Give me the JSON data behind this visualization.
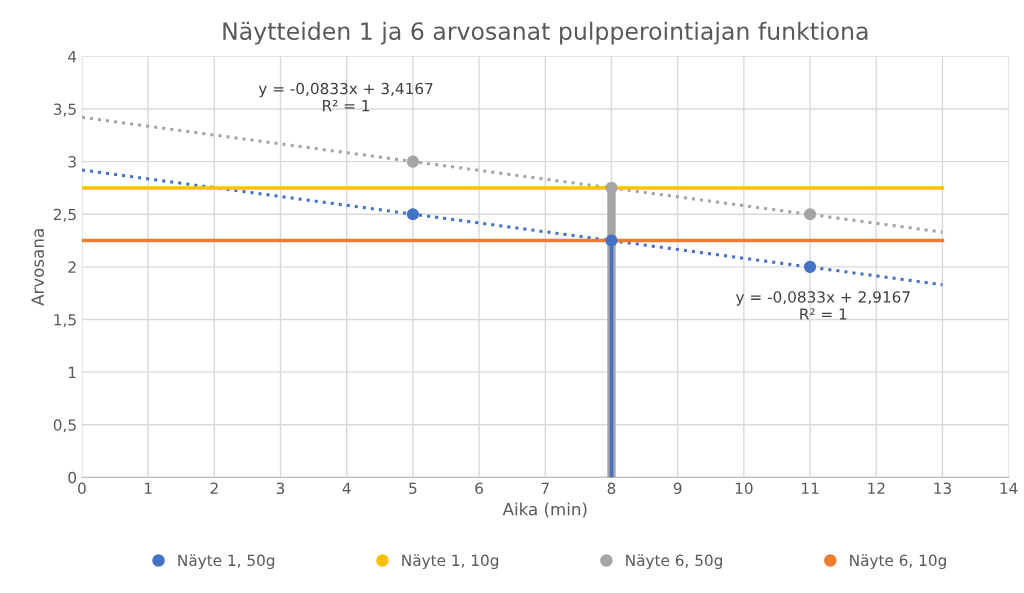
{
  "chart_data": {
    "type": "scatter",
    "title": "Näytteiden 1 ja 6 arvosanat pulpperointiajan funktiona",
    "xlabel": "Aika (min)",
    "ylabel": "Arvosana",
    "xlim": [
      0,
      14
    ],
    "xticks": [
      0,
      1,
      2,
      3,
      4,
      5,
      6,
      7,
      8,
      9,
      10,
      11,
      12,
      13,
      14
    ],
    "ylim": [
      0,
      4
    ],
    "yticks": [
      0,
      {
        "value": 0.5,
        "label": "0,5"
      },
      1,
      {
        "value": 1.5,
        "label": "1,5"
      },
      2,
      {
        "value": 2.5,
        "label": "2,5"
      },
      3,
      {
        "value": 3.5,
        "label": "3,5"
      },
      4
    ],
    "grid": true,
    "legend": "bottom",
    "series": [
      {
        "type": "line",
        "x": [
          0,
          13
        ],
        "values": [
          2.92,
          1.83
        ],
        "color": "#4472c4",
        "line_style": "dotted",
        "marker": "none"
      },
      {
        "type": "line",
        "x": [
          0,
          13
        ],
        "values": [
          3.42,
          2.33
        ],
        "color": "#a5a5a5",
        "line_style": "dotted",
        "marker": "none"
      },
      {
        "type": "line",
        "x": [
          8,
          8
        ],
        "values": [
          0,
          2.75
        ],
        "color": "#a5a5a5",
        "line_style": "solid",
        "marker": "none"
      },
      {
        "type": "line",
        "x": [
          8,
          8
        ],
        "values": [
          0,
          2.25
        ],
        "color": "#4472c4",
        "line_style": "solid",
        "marker": "none"
      },
      {
        "name": "Näyte 1, 50g",
        "x": [
          5,
          8,
          11
        ],
        "values": [
          2.5,
          2.25,
          2
        ],
        "color": "#4472c4",
        "marker": "circle"
      },
      {
        "name": "Näyte 1, 10g",
        "type": "line",
        "x": [
          0,
          13
        ],
        "values": [
          2.75,
          2.75
        ],
        "color": "#ffc000",
        "line_style": "solid",
        "marker": "none"
      },
      {
        "name": "Näyte 6, 50g",
        "x": [
          5,
          8,
          11
        ],
        "values": [
          3,
          2.75,
          2.5
        ],
        "color": "#a5a5a5",
        "marker": "circle"
      },
      {
        "name": "Näyte 6, 10g",
        "type": "line",
        "x": [
          0,
          13
        ],
        "values": [
          2.25,
          2.25
        ],
        "color": "#ed7d31",
        "line_style": "solid",
        "marker": "none"
      }
    ],
    "annotations": [
      "y = -0,0833x + 3,4167\nR² = 1",
      "y = -0,0833x + 2,9167\nR² = 1"
    ]
  }
}
